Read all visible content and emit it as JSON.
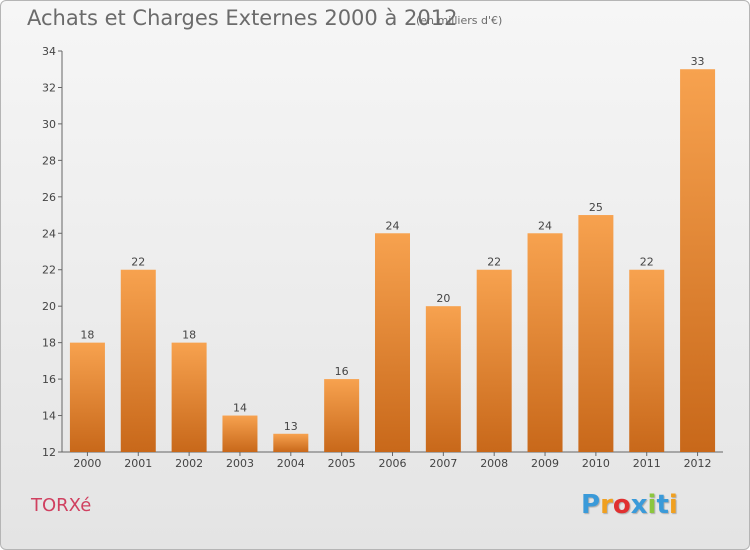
{
  "title": "Achats et Charges Externes 2000 à 2012",
  "subtitle": "(en milliers d'€)",
  "commune": "TORXé",
  "logo": {
    "letters": [
      "P",
      "r",
      "o",
      "x",
      "i",
      "t",
      "i"
    ],
    "colors": [
      "#3a9ad9",
      "#f0a020",
      "#e03030",
      "#3a9ad9",
      "#8cc63f",
      "#3a9ad9",
      "#f0a020"
    ]
  },
  "chart_data": {
    "type": "bar",
    "categories": [
      "2000",
      "2001",
      "2002",
      "2003",
      "2004",
      "2005",
      "2006",
      "2007",
      "2008",
      "2009",
      "2010",
      "2011",
      "2012"
    ],
    "values": [
      18,
      22,
      18,
      14,
      13,
      16,
      24,
      20,
      22,
      24,
      25,
      22,
      33
    ],
    "ylim": [
      12,
      34
    ],
    "yticks": [
      12,
      14,
      16,
      18,
      20,
      22,
      24,
      26,
      28,
      30,
      32,
      34
    ],
    "bar_color_top": "#f7a24f",
    "bar_color_bottom": "#c8681a",
    "grid": false
  }
}
